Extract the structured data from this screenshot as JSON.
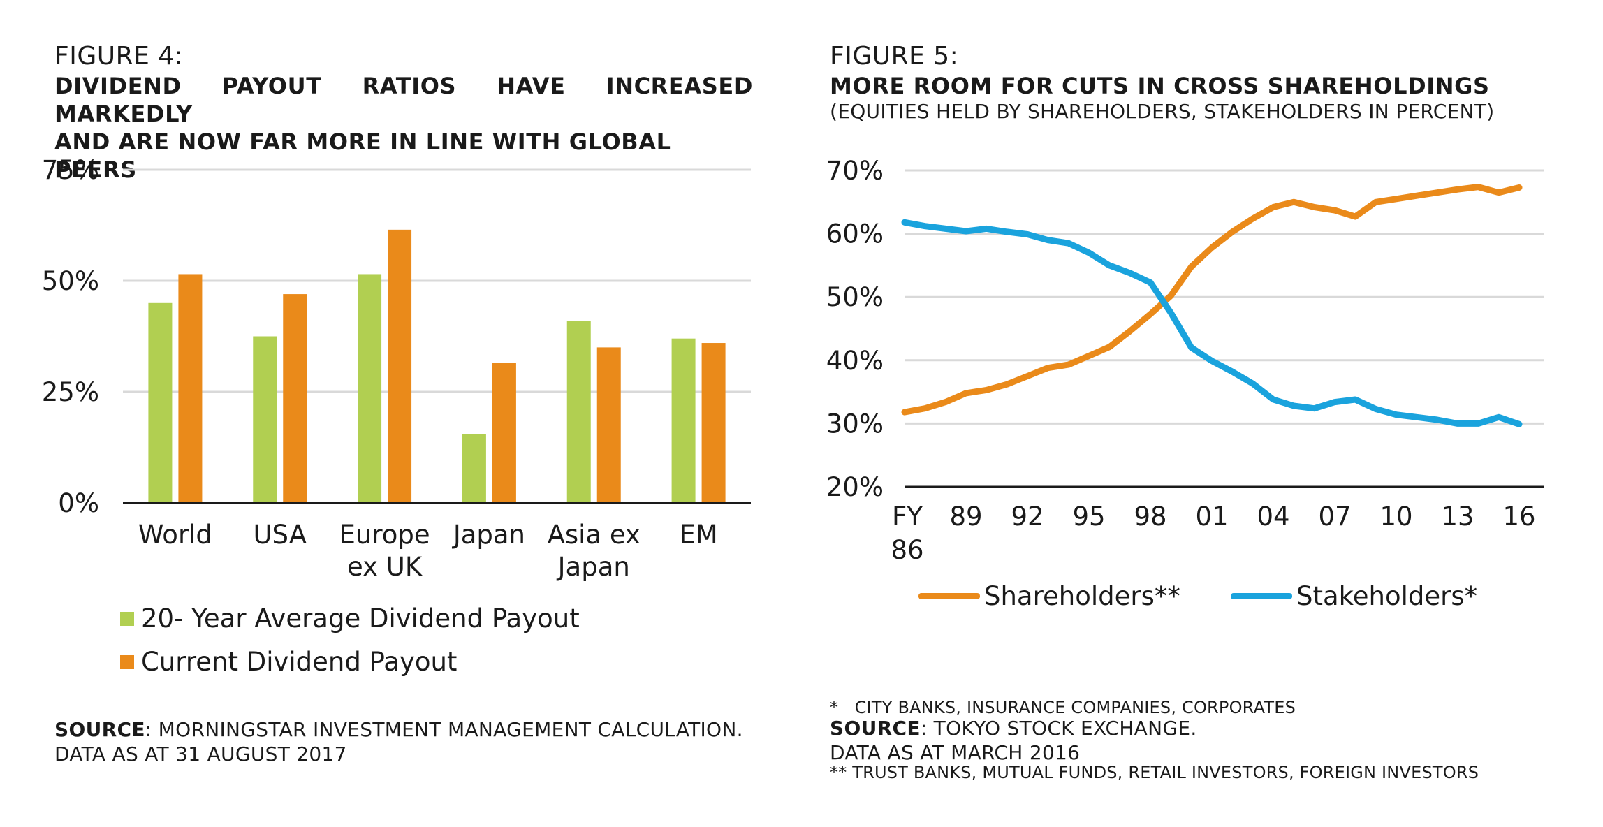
{
  "figure4": {
    "label": "FIGURE 4:",
    "title_line1": "DIVIDEND PAYOUT RATIOS HAVE INCREASED MARKEDLY",
    "title_line2": "AND ARE NOW FAR MORE IN LINE WITH GLOBAL PEERS",
    "legend": [
      "20- Year Average Dividend Payout",
      "Current Dividend Payout"
    ],
    "source_label": "SOURCE",
    "source_text": ": MORNINGSTAR INVESTMENT MANAGEMENT CALCULATION.",
    "source_line2": "DATA AS AT 31 AUGUST 2017"
  },
  "figure5": {
    "label": "FIGURE 5:",
    "title": "MORE ROOM FOR CUTS IN CROSS SHAREHOLDINGS",
    "subtitle": "(EQUITIES HELD BY SHAREHOLDERS, STAKEHOLDERS IN PERCENT)",
    "legend": [
      "Shareholders**",
      "Stakeholders*"
    ],
    "note1": "*   CITY BANKS, INSURANCE COMPANIES, CORPORATES",
    "note2": "** TRUST BANKS, MUTUAL FUNDS, RETAIL INVESTORS, FOREIGN INVESTORS",
    "source_label": "SOURCE",
    "source_text": ": TOKYO STOCK EXCHANGE.",
    "source_line2": "DATA AS AT MARCH 2016"
  },
  "colors": {
    "green": "#b1cf51",
    "orange": "#ea8a1a",
    "blue": "#1aa3dd",
    "grid": "#d9d9d9",
    "axis": "#1a1a1a"
  },
  "chart_data": [
    {
      "type": "bar",
      "categories": [
        [
          "World"
        ],
        [
          "USA"
        ],
        [
          "Europe",
          "ex UK"
        ],
        [
          "Japan"
        ],
        [
          "Asia ex",
          "Japan"
        ],
        [
          "EM"
        ]
      ],
      "series": [
        {
          "name": "20- Year Average Dividend Payout",
          "values": [
            45,
            37.5,
            51.5,
            15.5,
            41,
            37
          ]
        },
        {
          "name": "Current Dividend Payout",
          "values": [
            51.5,
            47,
            61.5,
            31.5,
            35,
            36
          ]
        }
      ],
      "ylim": [
        0,
        75
      ],
      "yticks": [
        0,
        25,
        50,
        75
      ],
      "yticklabels": [
        "0%",
        "25%",
        "50%",
        "75%"
      ],
      "grid": true,
      "legend_position": "bottom"
    },
    {
      "type": "line",
      "x": [
        1986,
        1987,
        1988,
        1989,
        1990,
        1991,
        1992,
        1993,
        1994,
        1995,
        1996,
        1997,
        1998,
        1999,
        2000,
        2001,
        2002,
        2003,
        2004,
        2005,
        2006,
        2007,
        2008,
        2009,
        2010,
        2011,
        2012,
        2013,
        2014,
        2015,
        2016
      ],
      "series": [
        {
          "name": "Shareholders**",
          "values": [
            31.8,
            32.4,
            33.4,
            34.8,
            35.3,
            36.2,
            37.5,
            38.8,
            39.3,
            40.7,
            42.1,
            44.6,
            47.3,
            50.2,
            54.8,
            57.8,
            60.3,
            62.4,
            64.2,
            65.0,
            64.2,
            63.7,
            62.7,
            65.0,
            65.5,
            66.0,
            66.5,
            67.0,
            67.4,
            66.5,
            67.3
          ]
        },
        {
          "name": "Stakeholders*",
          "values": [
            61.8,
            61.2,
            60.8,
            60.4,
            60.8,
            60.3,
            59.9,
            59.0,
            58.5,
            57.0,
            55.0,
            53.8,
            52.3,
            47.5,
            42.0,
            39.9,
            38.2,
            36.3,
            33.8,
            32.8,
            32.4,
            33.4,
            33.8,
            32.3,
            31.4,
            31.0,
            30.6,
            30.0,
            30.0,
            31.0,
            29.9
          ]
        }
      ],
      "xticks": [
        1986,
        1989,
        1992,
        1995,
        1998,
        2001,
        2004,
        2007,
        2010,
        2013,
        2016
      ],
      "xticklabels": [
        [
          "FY",
          "86"
        ],
        [
          "89"
        ],
        [
          "92"
        ],
        [
          "95"
        ],
        [
          "98"
        ],
        [
          "01"
        ],
        [
          "04"
        ],
        [
          "07"
        ],
        [
          "10"
        ],
        [
          "13"
        ],
        [
          "16"
        ]
      ],
      "ylim": [
        20,
        70
      ],
      "yticks": [
        20,
        30,
        40,
        50,
        60,
        70
      ],
      "yticklabels": [
        "20%",
        "30%",
        "40%",
        "50%",
        "60%",
        "70%"
      ],
      "grid": true,
      "legend_position": "bottom"
    }
  ]
}
